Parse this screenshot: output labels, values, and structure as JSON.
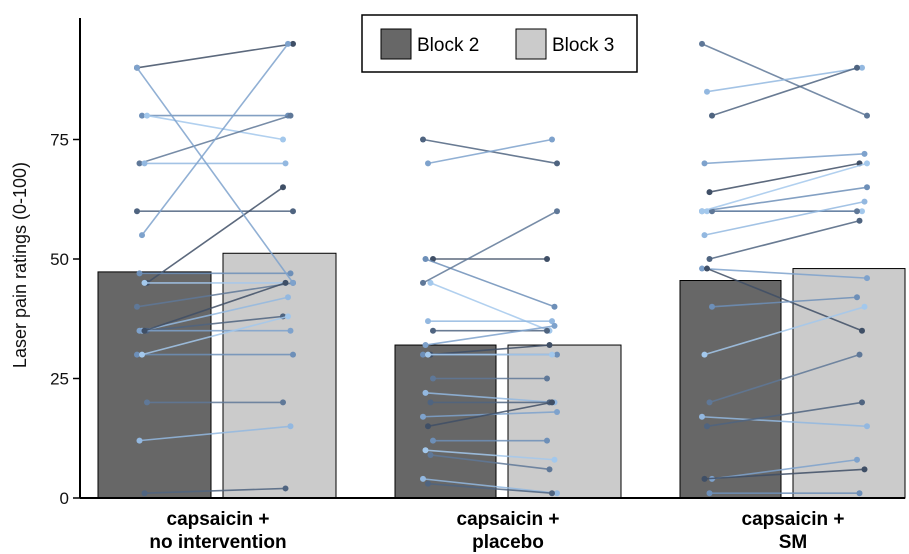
{
  "chart_data": {
    "type": "bar",
    "title": "",
    "xlabel": "",
    "ylabel": "Laser pain ratings (0-100)",
    "ylim": [
      0,
      100
    ],
    "yticks": [
      0,
      25,
      50,
      75
    ],
    "grid": false,
    "legend_position": "top-center",
    "categories": [
      [
        "capsaicin +",
        "no intervention"
      ],
      [
        "capsaicin +",
        "placebo"
      ],
      [
        "capsaicin +",
        "SM"
      ]
    ],
    "series": [
      {
        "name": "Block 2",
        "color": "#676767",
        "values": [
          47.3,
          32.0,
          45.5
        ]
      },
      {
        "name": "Block 3",
        "color": "#cbcbcb",
        "values": [
          51.2,
          32.0,
          48.0
        ]
      }
    ],
    "subject_lines": [
      [
        [
          90,
          95
        ],
        [
          80,
          80
        ],
        [
          80,
          75
        ],
        [
          70,
          80
        ],
        [
          70,
          70
        ],
        [
          60,
          60
        ],
        [
          55,
          95
        ],
        [
          45,
          65
        ],
        [
          47,
          47
        ],
        [
          45,
          45
        ],
        [
          40,
          45
        ],
        [
          35,
          42
        ],
        [
          35,
          38
        ],
        [
          35,
          35
        ],
        [
          35,
          45
        ],
        [
          30,
          30
        ],
        [
          30,
          38
        ],
        [
          20,
          20
        ],
        [
          12,
          15
        ],
        [
          1,
          2
        ],
        [
          90,
          45
        ]
      ],
      [
        [
          75,
          70
        ],
        [
          70,
          75
        ],
        [
          50,
          50
        ],
        [
          50,
          40
        ],
        [
          45,
          35
        ],
        [
          45,
          60
        ],
        [
          37,
          37
        ],
        [
          35,
          35
        ],
        [
          32,
          36
        ],
        [
          30,
          32
        ],
        [
          30,
          30
        ],
        [
          30,
          30
        ],
        [
          25,
          25
        ],
        [
          22,
          20
        ],
        [
          20,
          20
        ],
        [
          17,
          18
        ],
        [
          15,
          20
        ],
        [
          12,
          12
        ],
        [
          10,
          8
        ],
        [
          9,
          6
        ],
        [
          4,
          1
        ],
        [
          3,
          1
        ]
      ],
      [
        [
          95,
          80
        ],
        [
          85,
          90
        ],
        [
          80,
          90
        ],
        [
          70,
          72
        ],
        [
          64,
          70
        ],
        [
          60,
          65
        ],
        [
          60,
          60
        ],
        [
          60,
          60
        ],
        [
          55,
          62
        ],
        [
          50,
          58
        ],
        [
          48,
          46
        ],
        [
          48,
          35
        ],
        [
          40,
          42
        ],
        [
          30,
          40
        ],
        [
          20,
          30
        ],
        [
          17,
          15
        ],
        [
          15,
          20
        ],
        [
          4,
          8
        ],
        [
          4,
          6
        ],
        [
          1,
          1
        ],
        [
          60,
          70
        ]
      ]
    ],
    "subject_line_colors": [
      "#3f4f66",
      "#4f6480",
      "#5f7898",
      "#6d8fb8",
      "#7ea2cc",
      "#93b8e0",
      "#a3c8ec"
    ]
  }
}
